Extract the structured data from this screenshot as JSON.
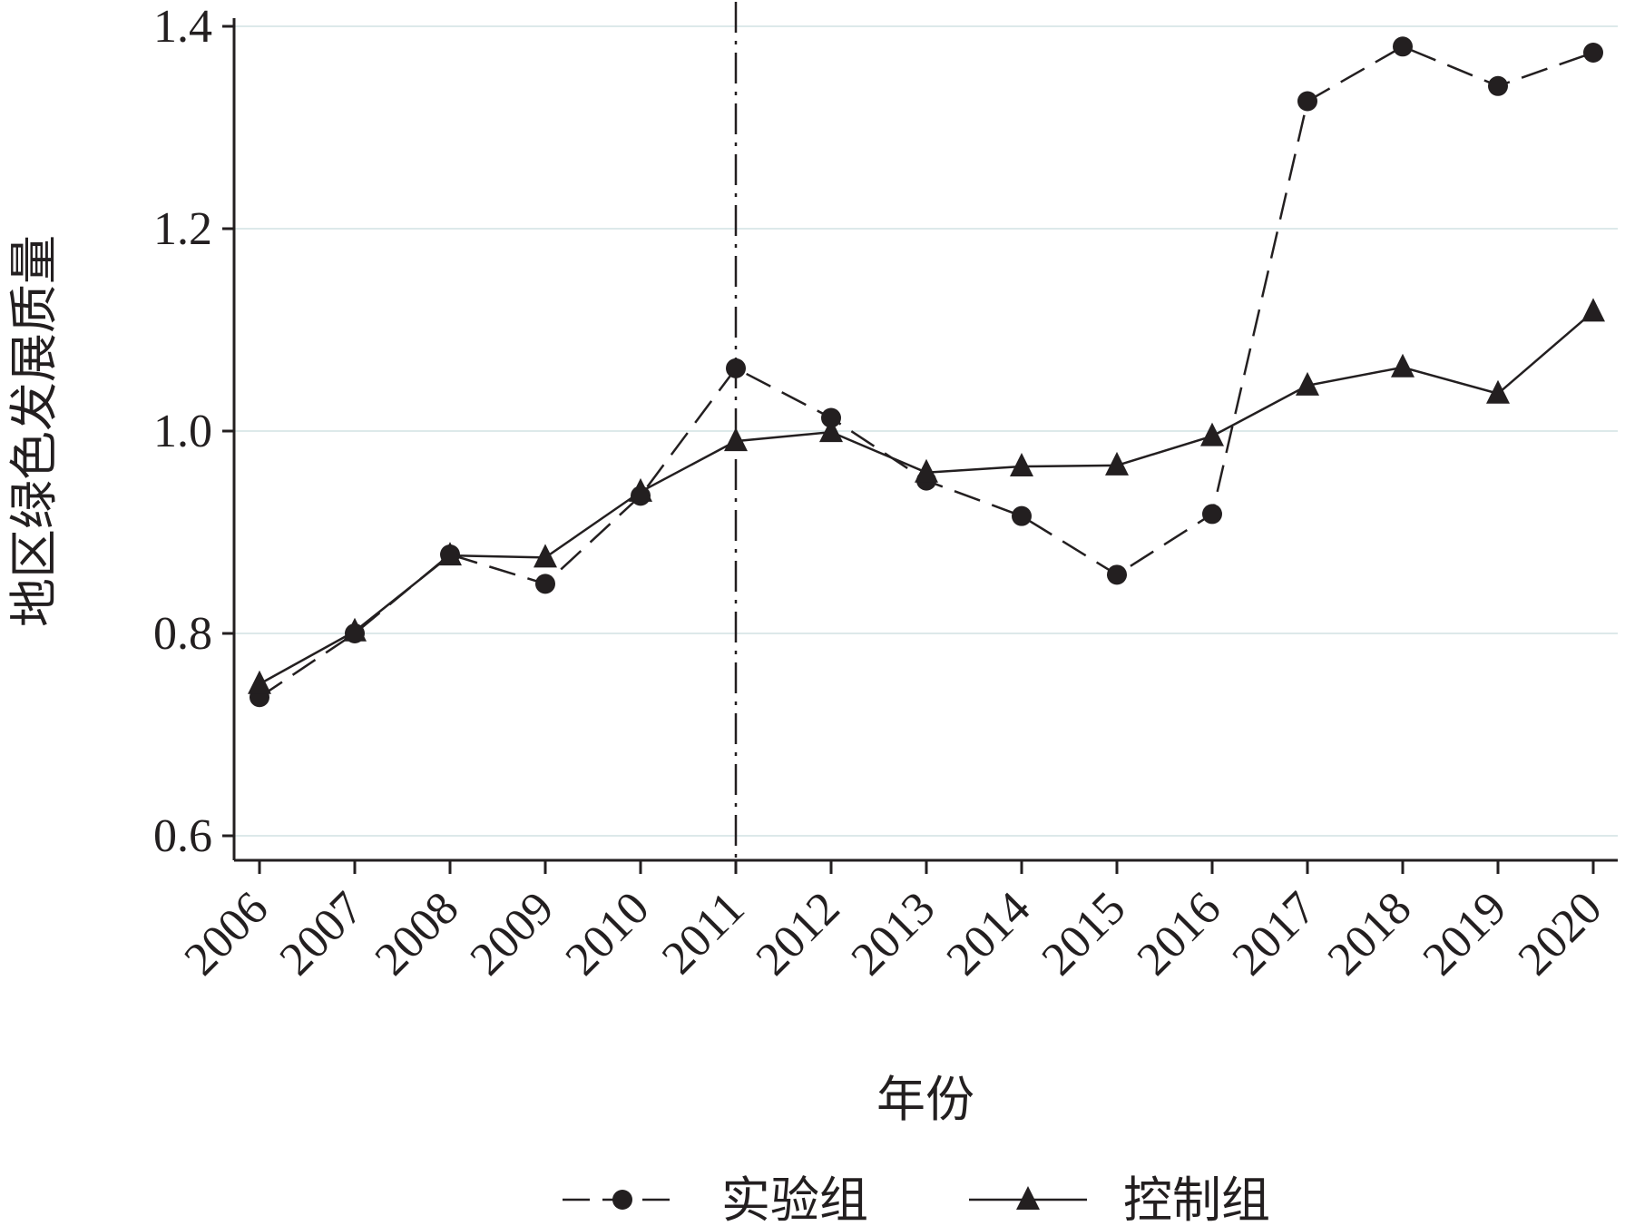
{
  "chart_data": {
    "type": "line",
    "title": "",
    "xlabel": "年份",
    "ylabel": "地区绿色发展质量",
    "categories": [
      "2006",
      "2007",
      "2008",
      "2009",
      "2010",
      "2011",
      "2012",
      "2013",
      "2014",
      "2015",
      "2016",
      "2017",
      "2018",
      "2019",
      "2020"
    ],
    "ylim": [
      0.6,
      1.4
    ],
    "yticks": [
      "0.6",
      "0.8",
      "1.0",
      "1.2",
      "1.4"
    ],
    "grid": true,
    "vertical_reference_line": "2011",
    "legend_position": "bottom",
    "series": [
      {
        "name": "实验组",
        "line_style": "dashed",
        "marker": "circle",
        "color": "#231f20",
        "values": [
          0.737,
          0.8,
          0.878,
          0.849,
          0.936,
          1.062,
          1.013,
          0.951,
          0.916,
          0.858,
          0.918,
          1.326,
          1.38,
          1.341,
          1.374
        ]
      },
      {
        "name": "控制组",
        "line_style": "solid",
        "marker": "triangle",
        "color": "#231f20",
        "values": [
          0.75,
          0.802,
          0.877,
          0.875,
          0.94,
          0.99,
          0.999,
          0.959,
          0.965,
          0.966,
          0.995,
          1.045,
          1.063,
          1.037,
          1.118
        ]
      }
    ],
    "colors": {
      "axis": "#231f20",
      "grid": "#dde9ea"
    }
  }
}
